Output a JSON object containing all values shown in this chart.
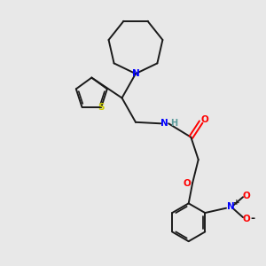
{
  "background_color": "#e8e8e8",
  "bond_color": "#1a1a1a",
  "N_color": "#0000ff",
  "O_color": "#ff0000",
  "S_color": "#cccc00",
  "H_color": "#5a9a9a",
  "figsize": [
    3.0,
    3.0
  ],
  "dpi": 100,
  "xlim": [
    0,
    10
  ],
  "ylim": [
    0,
    10
  ]
}
